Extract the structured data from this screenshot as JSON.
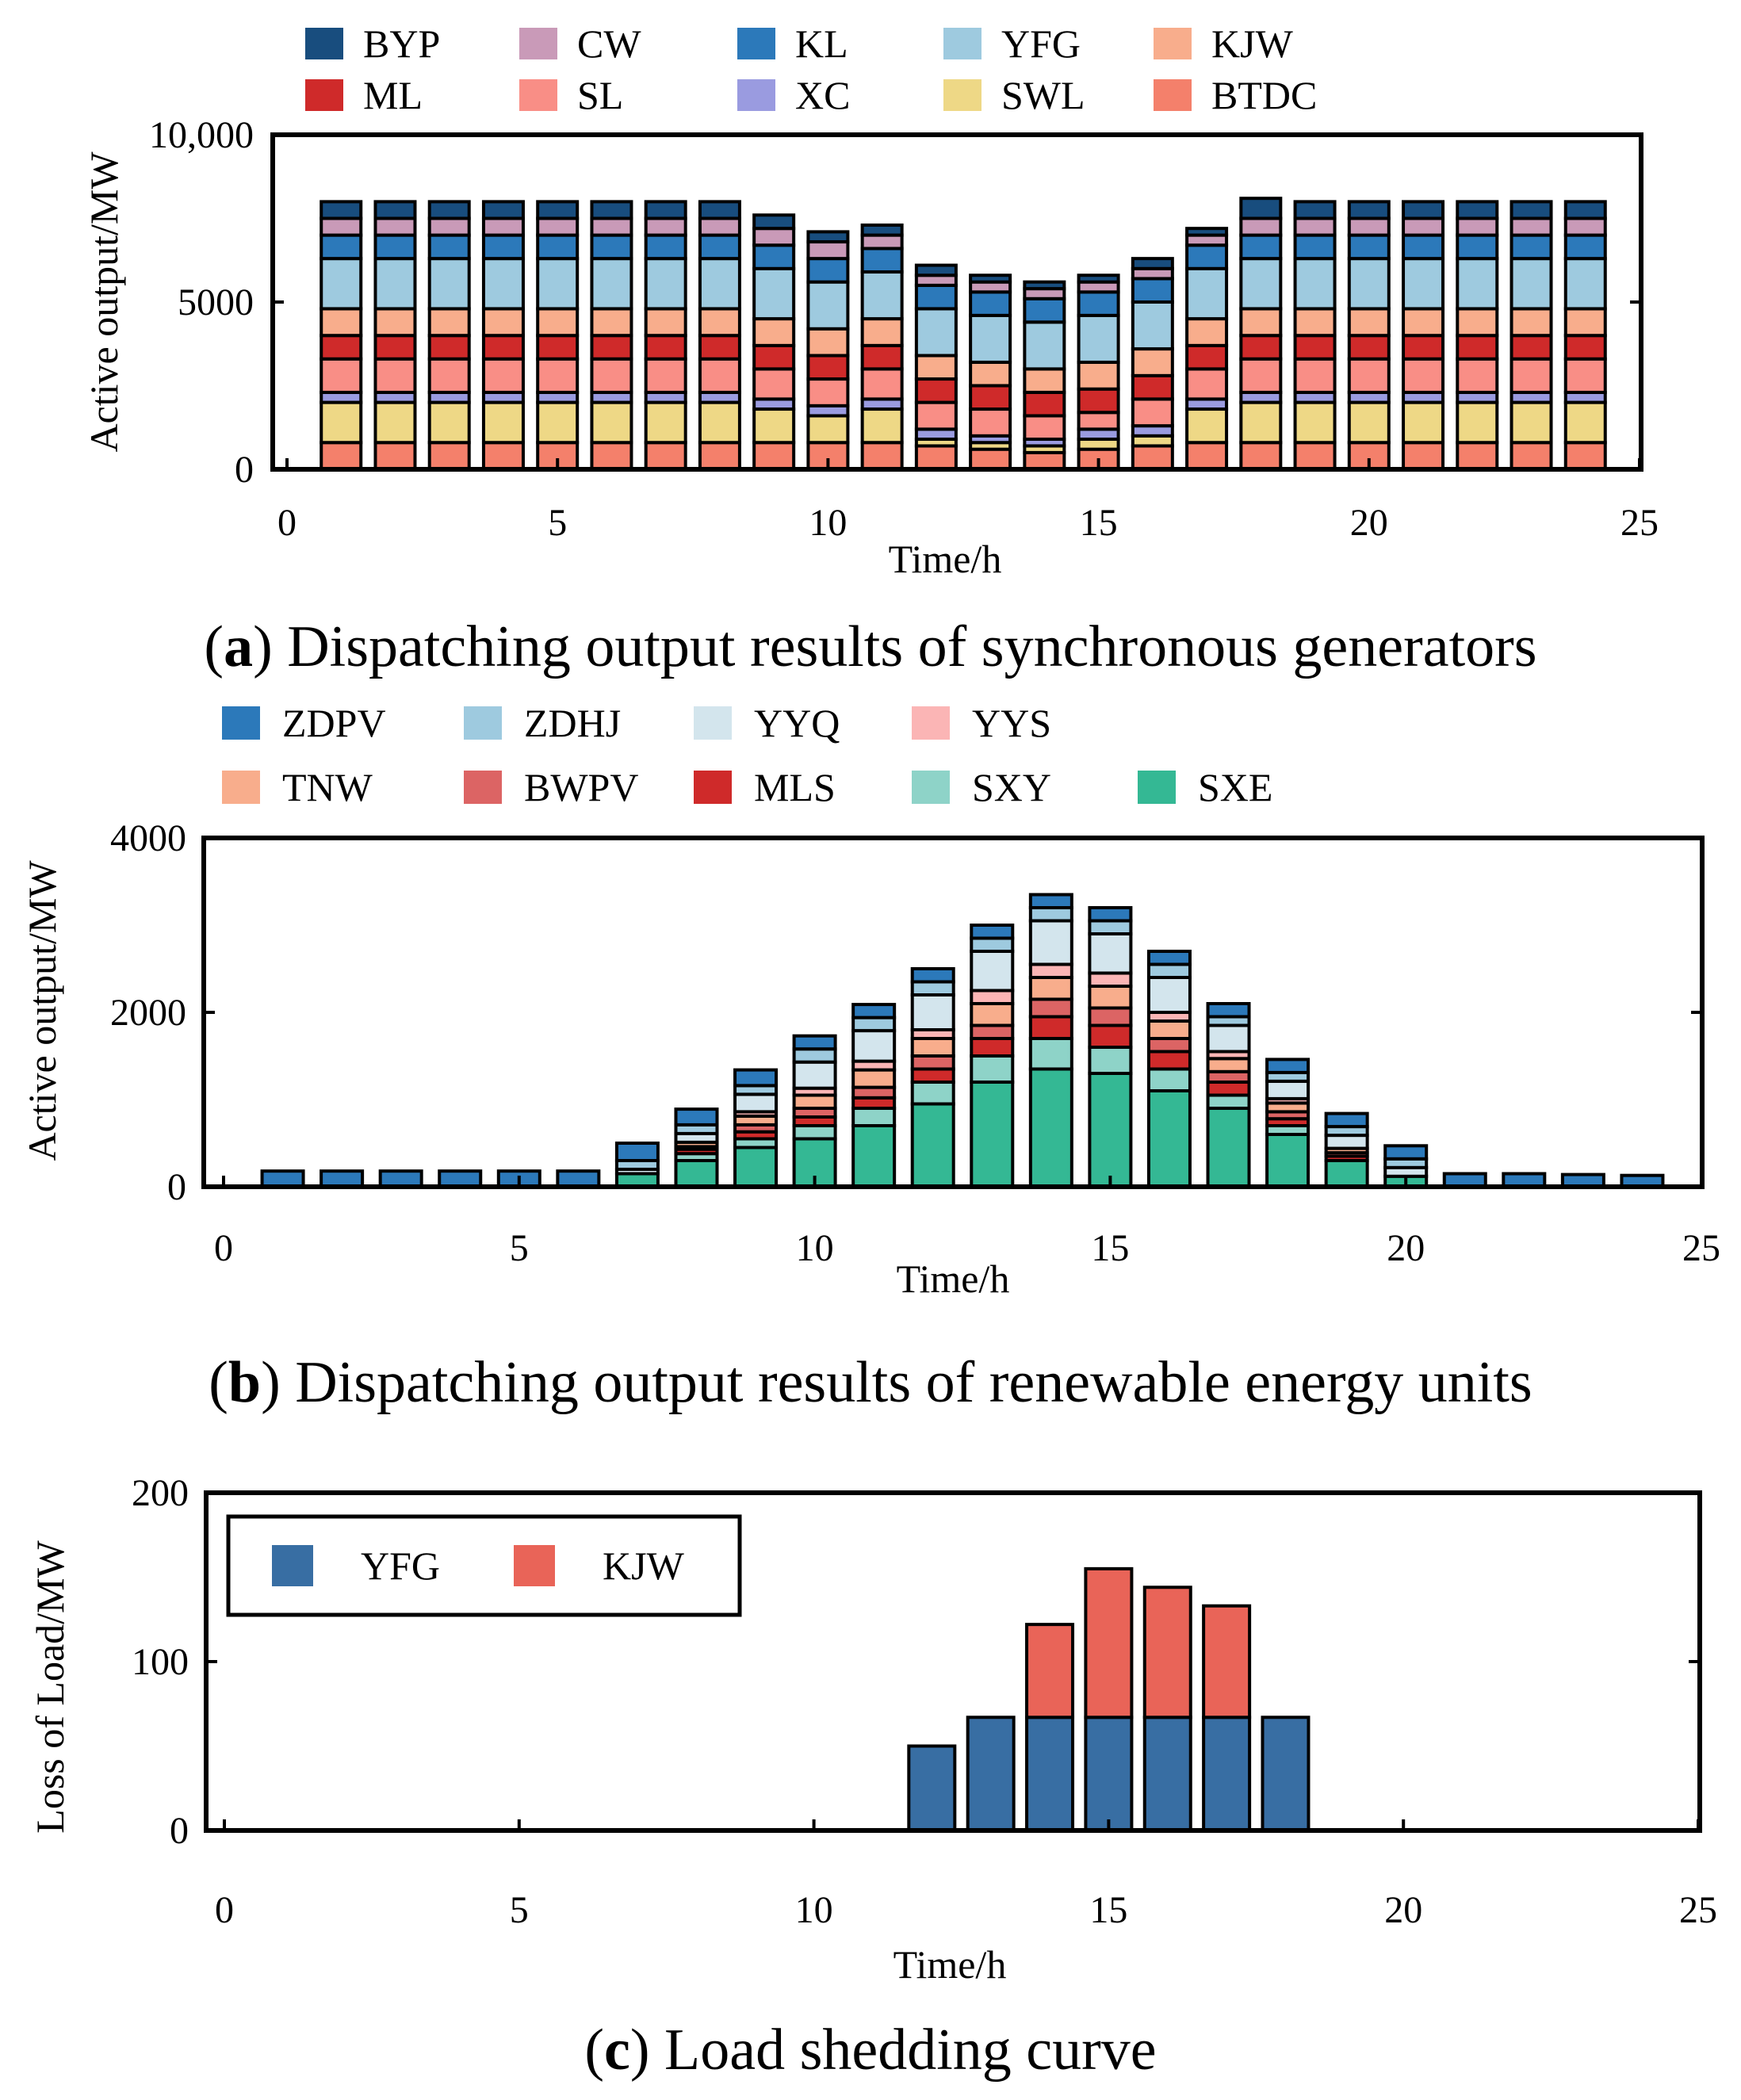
{
  "chart_data": [
    {
      "id": "a",
      "type": "bar",
      "stacked": true,
      "caption_letter": "a",
      "caption_text": "Dispatching output results of synchronous generators",
      "xlabel": "Time/h",
      "ylabel": "Active output/MW",
      "xlim": [
        0,
        25
      ],
      "ylim": [
        0,
        10000
      ],
      "xticks": [
        0,
        5,
        10,
        15,
        20,
        25
      ],
      "xtick_labels": [
        "0",
        "5",
        "10",
        "15",
        "20",
        "25"
      ],
      "yticks": [
        0,
        5000,
        10000
      ],
      "ytick_labels": [
        "0",
        "5000",
        "10,000"
      ],
      "x": [
        1,
        2,
        3,
        4,
        5,
        6,
        7,
        8,
        9,
        10,
        11,
        12,
        13,
        14,
        15,
        16,
        17,
        18,
        19,
        20,
        21,
        22,
        23,
        24
      ],
      "legend_position": "top (above plot)",
      "series": [
        {
          "name": "BTDC",
          "color": "#f4806b",
          "values": [
            800,
            800,
            800,
            800,
            800,
            800,
            800,
            800,
            800,
            800,
            800,
            700,
            600,
            500,
            600,
            700,
            800,
            800,
            800,
            800,
            800,
            800,
            800,
            800
          ]
        },
        {
          "name": "SWL",
          "color": "#eed886",
          "values": [
            1200,
            1200,
            1200,
            1200,
            1200,
            1200,
            1200,
            1200,
            1000,
            800,
            1000,
            200,
            200,
            200,
            300,
            300,
            1000,
            1200,
            1200,
            1200,
            1200,
            1200,
            1200,
            1200
          ]
        },
        {
          "name": "XC",
          "color": "#9a9be0",
          "values": [
            300,
            300,
            300,
            300,
            300,
            300,
            300,
            300,
            300,
            300,
            300,
            300,
            200,
            200,
            300,
            300,
            300,
            300,
            300,
            300,
            300,
            300,
            300,
            300
          ]
        },
        {
          "name": "SL",
          "color": "#f98e86",
          "values": [
            1000,
            1000,
            1000,
            1000,
            1000,
            1000,
            1000,
            1000,
            900,
            800,
            900,
            800,
            800,
            700,
            500,
            800,
            900,
            1000,
            1000,
            1000,
            1000,
            1000,
            1000,
            1000
          ]
        },
        {
          "name": "ML",
          "color": "#cf2a2a",
          "values": [
            700,
            700,
            700,
            700,
            700,
            700,
            700,
            700,
            700,
            700,
            700,
            700,
            700,
            700,
            700,
            700,
            700,
            700,
            700,
            700,
            700,
            700,
            700,
            700
          ]
        },
        {
          "name": "KJW",
          "color": "#f8ad8c",
          "values": [
            800,
            800,
            800,
            800,
            800,
            800,
            800,
            800,
            800,
            800,
            800,
            700,
            700,
            700,
            800,
            800,
            800,
            800,
            800,
            800,
            800,
            800,
            800,
            800
          ]
        },
        {
          "name": "YFG",
          "color": "#9ecadf",
          "values": [
            1500,
            1500,
            1500,
            1500,
            1500,
            1500,
            1500,
            1500,
            1500,
            1400,
            1400,
            1400,
            1400,
            1400,
            1400,
            1400,
            1500,
            1500,
            1500,
            1500,
            1500,
            1500,
            1500,
            1500
          ]
        },
        {
          "name": "KL",
          "color": "#2c79ba",
          "values": [
            700,
            700,
            700,
            700,
            700,
            700,
            700,
            700,
            700,
            700,
            700,
            700,
            700,
            700,
            700,
            700,
            700,
            700,
            700,
            700,
            700,
            700,
            700,
            700
          ]
        },
        {
          "name": "CW",
          "color": "#c99ab8",
          "values": [
            500,
            500,
            500,
            500,
            500,
            500,
            500,
            500,
            500,
            500,
            400,
            300,
            300,
            300,
            300,
            300,
            300,
            500,
            500,
            500,
            500,
            500,
            500,
            500
          ]
        },
        {
          "name": "BYP",
          "color": "#184d7e",
          "values": [
            500,
            500,
            500,
            500,
            500,
            500,
            500,
            500,
            400,
            300,
            300,
            300,
            200,
            200,
            200,
            300,
            200,
            600,
            500,
            500,
            500,
            500,
            500,
            500
          ]
        }
      ]
    },
    {
      "id": "b",
      "type": "bar",
      "stacked": true,
      "caption_letter": "b",
      "caption_text": "Dispatching output results of renewable energy units",
      "xlabel": "Time/h",
      "ylabel": "Active output/MW",
      "xlim": [
        0,
        25
      ],
      "ylim": [
        0,
        4000
      ],
      "xticks": [
        0,
        5,
        10,
        15,
        20,
        25
      ],
      "xtick_labels": [
        "0",
        "5",
        "10",
        "15",
        "20",
        "25"
      ],
      "yticks": [
        0,
        2000,
        4000
      ],
      "ytick_labels": [
        "0",
        "2000",
        "4000"
      ],
      "x": [
        1,
        2,
        3,
        4,
        5,
        6,
        7,
        8,
        9,
        10,
        11,
        12,
        13,
        14,
        15,
        16,
        17,
        18,
        19,
        20,
        21,
        22,
        23,
        24
      ],
      "legend_position": "top (above plot)",
      "series": [
        {
          "name": "SXE",
          "color": "#34b894",
          "values": [
            0,
            0,
            0,
            0,
            0,
            0,
            150,
            300,
            450,
            550,
            700,
            950,
            1200,
            1350,
            1300,
            1100,
            900,
            600,
            300,
            120,
            0,
            0,
            0,
            0
          ]
        },
        {
          "name": "SXY",
          "color": "#8ed3c8",
          "values": [
            0,
            0,
            0,
            0,
            0,
            0,
            0,
            80,
            100,
            150,
            200,
            250,
            300,
            350,
            300,
            250,
            150,
            100,
            0,
            0,
            0,
            0,
            0,
            0
          ]
        },
        {
          "name": "MLS",
          "color": "#cf2a2a",
          "values": [
            0,
            0,
            0,
            0,
            0,
            0,
            0,
            50,
            80,
            100,
            120,
            150,
            200,
            250,
            250,
            200,
            150,
            80,
            50,
            0,
            0,
            0,
            0,
            0
          ]
        },
        {
          "name": "BWPV",
          "color": "#dc6464",
          "values": [
            0,
            0,
            0,
            0,
            0,
            0,
            0,
            30,
            80,
            100,
            120,
            150,
            150,
            200,
            200,
            150,
            120,
            80,
            40,
            0,
            0,
            0,
            0,
            0
          ]
        },
        {
          "name": "TNW",
          "color": "#f8ad8c",
          "values": [
            0,
            0,
            0,
            0,
            0,
            0,
            0,
            50,
            100,
            150,
            200,
            200,
            250,
            250,
            250,
            200,
            150,
            100,
            50,
            0,
            0,
            0,
            0,
            0
          ]
        },
        {
          "name": "YYS",
          "color": "#fbb5b5",
          "values": [
            0,
            0,
            0,
            0,
            0,
            0,
            0,
            0,
            50,
            80,
            100,
            100,
            150,
            150,
            150,
            100,
            80,
            50,
            0,
            0,
            0,
            0,
            0,
            0
          ]
        },
        {
          "name": "YYQ",
          "color": "#d3e5ed",
          "values": [
            0,
            0,
            0,
            0,
            0,
            0,
            50,
            100,
            200,
            300,
            350,
            400,
            450,
            500,
            450,
            400,
            300,
            200,
            150,
            100,
            0,
            0,
            0,
            0
          ]
        },
        {
          "name": "ZDHJ",
          "color": "#9ecadf",
          "values": [
            0,
            0,
            0,
            0,
            0,
            0,
            100,
            100,
            100,
            150,
            150,
            150,
            150,
            150,
            150,
            150,
            100,
            100,
            100,
            100,
            0,
            0,
            0,
            0
          ]
        },
        {
          "name": "ZDPV",
          "color": "#2c79ba",
          "values": [
            180,
            180,
            180,
            180,
            180,
            180,
            200,
            180,
            180,
            150,
            150,
            150,
            150,
            150,
            150,
            150,
            150,
            150,
            150,
            150,
            150,
            150,
            140,
            130
          ]
        }
      ]
    },
    {
      "id": "c",
      "type": "bar",
      "stacked": true,
      "caption_letter": "c",
      "caption_text": "Load shedding curve",
      "xlabel": "Time/h",
      "ylabel": "Loss of Load/MW",
      "xlim": [
        0,
        25
      ],
      "ylim": [
        0,
        200
      ],
      "xticks": [
        0,
        5,
        10,
        15,
        20,
        25
      ],
      "xtick_labels": [
        "0",
        "5",
        "10",
        "15",
        "20",
        "25"
      ],
      "yticks": [
        0,
        100,
        200
      ],
      "ytick_labels": [
        "0",
        "100",
        "200"
      ],
      "x": [
        1,
        2,
        3,
        4,
        5,
        6,
        7,
        8,
        9,
        10,
        11,
        12,
        13,
        14,
        15,
        16,
        17,
        18,
        19,
        20,
        21,
        22,
        23,
        24
      ],
      "legend_position": "top-left (inside plot)",
      "series": [
        {
          "name": "YFG",
          "color": "#386ea3",
          "values": [
            0,
            0,
            0,
            0,
            0,
            0,
            0,
            0,
            0,
            0,
            0,
            50,
            67,
            67,
            67,
            67,
            67,
            67,
            0,
            0,
            0,
            0,
            0,
            0
          ]
        },
        {
          "name": "KJW",
          "color": "#e96458",
          "values": [
            0,
            0,
            0,
            0,
            0,
            0,
            0,
            0,
            0,
            0,
            0,
            0,
            0,
            55,
            88,
            77,
            66,
            0,
            0,
            0,
            0,
            0,
            0,
            0
          ]
        }
      ]
    }
  ]
}
